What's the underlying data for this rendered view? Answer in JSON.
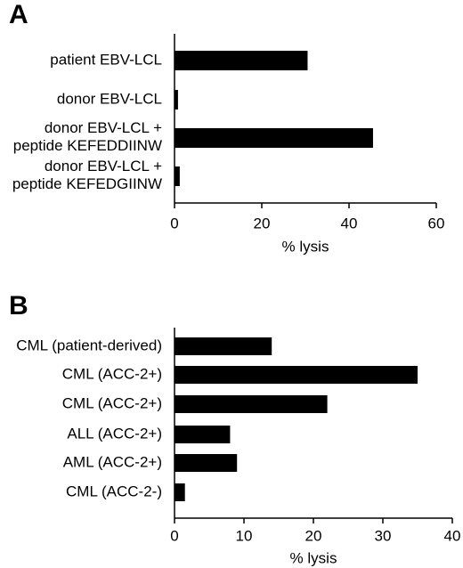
{
  "chart_data": [
    {
      "type": "barh",
      "panel_label": "A",
      "xlabel": "% lysis",
      "categories": [
        "patient EBV-LCL",
        "donor EBV-LCL",
        "donor EBV-LCL + peptide KEFEDDIINW",
        "donor EBV-LCL + peptide KEFEDGIINW"
      ],
      "values": [
        30.5,
        0.8,
        45.5,
        1.2
      ],
      "color": "#000000",
      "xlim": [
        0,
        60
      ],
      "xticks": [
        0,
        20,
        40,
        60
      ]
    },
    {
      "type": "barh",
      "panel_label": "B",
      "xlabel": "% lysis",
      "categories": [
        "CML (patient-derived)",
        "CML (ACC-2+)",
        "CML (ACC-2+)",
        "ALL (ACC-2+)",
        "AML (ACC-2+)",
        "CML (ACC-2-)"
      ],
      "values": [
        14,
        35,
        22,
        8,
        9,
        1.5
      ],
      "color": "#000000",
      "xlim": [
        0,
        40
      ],
      "xticks": [
        0,
        10,
        20,
        30,
        40
      ]
    }
  ]
}
